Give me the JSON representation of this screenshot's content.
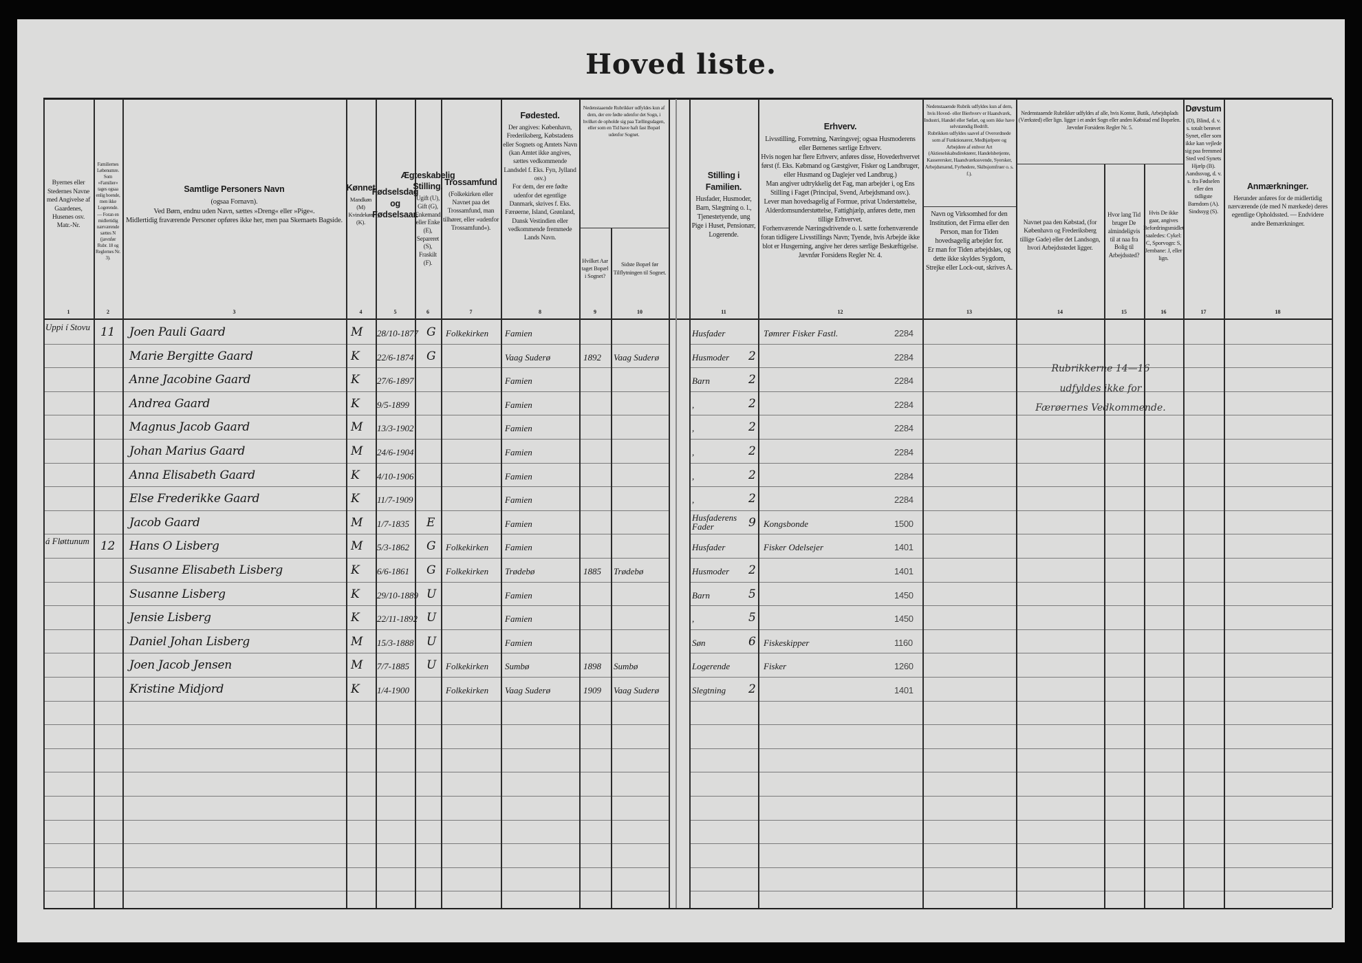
{
  "title": "Hoved    liste.",
  "header": {
    "columns": [
      {
        "num": "1",
        "title": "",
        "body": "Byernes eller Stedernes Navne med Angivelse af Gaardenes, Husenes osv. Matr.-Nr."
      },
      {
        "num": "2",
        "title": "",
        "body": "Familiernes Løbenumre. Som »Familier« tages ogsaa enlig boende, men ikke Logerende. — Foran en midlertidig nærværende sættes N (jævnfør Rubr. 18 og Reglernes Nr. 3)."
      },
      {
        "num": "3",
        "title": "Samtlige Personers Navn",
        "body": "(ogsaa Fornavn).\nVed Børn, endnu uden Navn, sættes »Dreng« eller »Pige«.\nMidlertidig fraværende Personer opføres ikke her, men paa Skemaets Bagside."
      },
      {
        "num": "4",
        "title": "Kønnet",
        "body": "Mandkøn (M) Kvindekøn (K)."
      },
      {
        "num": "5",
        "title": "Fødselsdag og Fødselsaar.",
        "body": ""
      },
      {
        "num": "6",
        "title": "Ægteskabelig Stilling.",
        "body": "Ugift (U), Gift (G), Enkemand eller Enke (E), Separeret (S), Fraskilt (F)."
      },
      {
        "num": "7",
        "title": "Trossamfund",
        "body": "(Folkekirken eller Navnet paa det Trossamfund, man tilhører, eller »udenfor Trossamfund«)."
      },
      {
        "num": "8",
        "title": "Fødested.",
        "body": "Der angives: København, Frederiksberg, Købstadens eller Sognets og Amtets Navn (kan Amtet ikke angives, sættes vedkommende Landsdel f. Eks. Fyn, Jylland osv.)\nFor dem, der ere fødte udenfor det egentlige Danmark, skrives f. Eks. Færøerne, Island, Grønland, Dansk Vestindien eller vedkommende fremmede Lands Navn."
      },
      {
        "num": "9",
        "title": "",
        "body": "Hvilket Aar taget Bopæl i Sognet?"
      },
      {
        "num": "10",
        "title": "",
        "body": "Sidste Bopæl før Tilflytningen til Sognet."
      },
      {
        "num": "11",
        "title": "Stilling i Familien.",
        "body": "Husfader, Husmoder, Barn, Slægtning o. l., Tjenestetyende, ung Pige i Huset, Pensionær, Logerende."
      },
      {
        "num": "12",
        "title": "Erhverv.",
        "body": "Livsstilling, Forretning, Næringsvej; ogsaa Husmoderens eller Børnenes særlige Erhverv.\nHvis nogen har flere Erhverv, anføres disse, Hovederhvervet først (f. Eks. Købmand og Gæstgiver, Fisker og Landbruger, eller Husmand og Daglejer ved Landbrug.)\nMan angiver udtrykkelig det Fag, man arbejder i, og Ens Stilling i Faget (Principal, Svend, Arbejdsmand osv.).\nLever man hovedsagelig af Formue, privat Understøttelse, Alderdomsunderstøttelse, Fattighjælp, anføres dette, men tillige Erhvervet.\nForhenværende Næringsdrivende o. l. sætte forhenværende foran tidligere Livsstillings Navn; Tyende, hvis Arbejde ikke blot er Husgerning, angive her deres særlige Beskæftigelse.\nJævnfør Forsidens Regler Nr. 4."
      },
      {
        "num": "13",
        "title": "",
        "body": "Navn og Virksomhed for den Institution, det Firma eller den Person, man for Tiden hovedsagelig arbejder for.\nEr man for Tiden arbejdsløs, og dette ikke skyldes Sygdom, Strejke eller Lock-out, skrives A."
      },
      {
        "num": "14",
        "title": "",
        "body": "Navnet paa den Købstad, (for København og Frederiksberg tillige Gade) eller det Landsogn, hvori Arbejdsstedet ligger."
      },
      {
        "num": "15",
        "title": "",
        "body": "Hvor lang Tid bruger De almindeligvis til at naa fra Bolig til Arbejdssted?"
      },
      {
        "num": "16",
        "title": "",
        "body": "Hvis De ikke gaar, angives Befordringsmidlet saaledes: Cykel: C, Sporvogn: S, Jernbane: J, eller lign."
      },
      {
        "num": "17",
        "title": "Døvstum",
        "body": "(D), Blind, d. v. s. totalt berøvet Synet, eller som ikke kan vejlede sig paa fremmed Sted ved Synets Hjælp (B). Aandssvag, d. v. s. fra Fødselen eller den tidligste Barndom (A). Sindssyg (S)."
      },
      {
        "num": "18",
        "title": "Anmærkninger.",
        "body": "Herunder anføres for de midlertidig nærværende (de med N mærkede) deres egentlige Opholdssted. — Endvidere andre Bemærkninger."
      }
    ],
    "group_9_10": "Nedenstaaende Rubrikker udfyldes kun af dem, der ere fødte udenfor det Sogn, i hvilket de opholde sig paa Tællingsdagen, eller som en Tid have haft fast Bopæl udenfor Sognet.",
    "group_13": "Nedenstaaende Rubrik udfyldes kun af dem, hvis Hoved- eller Bierhverv er Haandværk, Industri, Handel eller Søfart, og som ikke have selvstændig Bedrift.\nRubrikken udfyldes saavel af Overordnede som af Funktionærer, Medhjælpere og Arbejdere af enhver Art (Aktieselskabsdirektører, Handelsbetjente, Kasserersker, Haandværkssvende, Syersker, Arbejdsmænd, Fyrbødere, Skibsjomfruer o. s. f.).",
    "group_14_16": "Nedenstaaende Rubrikker udfyldes af alle, hvis Kontor, Butik, Arbejdsplads (Værksted) eller lign. ligger i et andet Sogn eller anden Købstad end Bopælen.\nJævnfør Forsidens Regler Nr. 5."
  },
  "rows": [
    {
      "place": "Uppi í Stovu",
      "fam": "11",
      "name": "Joen Pauli Gaard",
      "sex": "M",
      "birth": "28/10-1877",
      "marital": "G",
      "religion": "Folkekirken",
      "birthplace": "Famien",
      "year": "",
      "last": "",
      "position": "Husfader",
      "pos_code": "",
      "occupation": "Tømrer Fisker Fastl.",
      "code": "2284"
    },
    {
      "place": "",
      "fam": "",
      "name": "Marie Bergitte Gaard",
      "sex": "K",
      "birth": "22/6-1874",
      "marital": "G",
      "religion": "",
      "birthplace": "Vaag Suderø",
      "year": "1892",
      "last": "Vaag Suderø",
      "position": "Husmoder",
      "pos_code": "2",
      "occupation": "",
      "code": "2284"
    },
    {
      "place": "",
      "fam": "",
      "name": "Anne Jacobine Gaard",
      "sex": "K",
      "birth": "27/6-1897",
      "marital": "",
      "religion": "",
      "birthplace": "Famien",
      "year": "",
      "last": "",
      "position": "Barn",
      "pos_code": "2",
      "occupation": "",
      "code": "2284"
    },
    {
      "place": "",
      "fam": "",
      "name": "Andrea Gaard",
      "sex": "K",
      "birth": "9/5-1899",
      "marital": "",
      "religion": "",
      "birthplace": "Famien",
      "year": "",
      "last": "",
      "position": ",",
      "pos_code": "2",
      "occupation": "",
      "code": "2284"
    },
    {
      "place": "",
      "fam": "",
      "name": "Magnus Jacob Gaard",
      "sex": "M",
      "birth": "13/3-1902",
      "marital": "",
      "religion": "",
      "birthplace": "Famien",
      "year": "",
      "last": "",
      "position": ",",
      "pos_code": "2",
      "occupation": "",
      "code": "2284"
    },
    {
      "place": "",
      "fam": "",
      "name": "Johan Marius Gaard",
      "sex": "M",
      "birth": "24/6-1904",
      "marital": "",
      "religion": "",
      "birthplace": "Famien",
      "year": "",
      "last": "",
      "position": ",",
      "pos_code": "2",
      "occupation": "",
      "code": "2284"
    },
    {
      "place": "",
      "fam": "",
      "name": "Anna Elisabeth Gaard",
      "sex": "K",
      "birth": "4/10-1906",
      "marital": "",
      "religion": "",
      "birthplace": "Famien",
      "year": "",
      "last": "",
      "position": ",",
      "pos_code": "2",
      "occupation": "",
      "code": "2284"
    },
    {
      "place": "",
      "fam": "",
      "name": "Else Frederikke Gaard",
      "sex": "K",
      "birth": "11/7-1909",
      "marital": "",
      "religion": "",
      "birthplace": "Famien",
      "year": "",
      "last": "",
      "position": ",",
      "pos_code": "2",
      "occupation": "",
      "code": "2284"
    },
    {
      "place": "",
      "fam": "",
      "name": "Jacob Gaard",
      "sex": "M",
      "birth": "1/7-1835",
      "marital": "E",
      "religion": "",
      "birthplace": "Famien",
      "year": "",
      "last": "",
      "position": "Husfaderens Fader",
      "pos_code": "9",
      "occupation": "Kongsbonde",
      "code": "1500"
    },
    {
      "place": "á Fløttunum",
      "fam": "12",
      "name": "Hans O Lisberg",
      "sex": "M",
      "birth": "5/3-1862",
      "marital": "G",
      "religion": "Folkekirken",
      "birthplace": "Famien",
      "year": "",
      "last": "",
      "position": "Husfader",
      "pos_code": "",
      "occupation": "Fisker Odelsejer",
      "code": "1401"
    },
    {
      "place": "",
      "fam": "",
      "name": "Susanne Elisabeth Lisberg",
      "sex": "K",
      "birth": "6/6-1861",
      "marital": "G",
      "religion": "Folkekirken",
      "birthplace": "Trødebø",
      "year": "1885",
      "last": "Trødebø",
      "position": "Husmoder",
      "pos_code": "2",
      "occupation": "",
      "code": "1401"
    },
    {
      "place": "",
      "fam": "",
      "name": "Susanne Lisberg",
      "sex": "K",
      "birth": "29/10-1889",
      "marital": "U",
      "religion": "",
      "birthplace": "Famien",
      "year": "",
      "last": "",
      "position": "Barn",
      "pos_code": "5",
      "occupation": "",
      "code": "1450"
    },
    {
      "place": "",
      "fam": "",
      "name": "Jensie Lisberg",
      "sex": "K",
      "birth": "22/11-1892",
      "marital": "U",
      "religion": "",
      "birthplace": "Famien",
      "year": "",
      "last": "",
      "position": ",",
      "pos_code": "5",
      "occupation": "",
      "code": "1450"
    },
    {
      "place": "",
      "fam": "",
      "name": "Daniel Johan Lisberg",
      "sex": "M",
      "birth": "15/3-1888",
      "marital": "U",
      "religion": "",
      "birthplace": "Famien",
      "year": "",
      "last": "",
      "position": "Søn",
      "pos_code": "6",
      "occupation": "Fiskeskipper",
      "code": "1160"
    },
    {
      "place": "",
      "fam": "",
      "name": "Joen Jacob Jensen",
      "sex": "M",
      "birth": "7/7-1885",
      "marital": "U",
      "religion": "Folkekirken",
      "birthplace": "Sumbø",
      "year": "1898",
      "last": "Sumbø",
      "position": "Logerende",
      "pos_code": "",
      "occupation": "Fisker",
      "code": "1260"
    },
    {
      "place": "",
      "fam": "",
      "name": "Kristine Midjord",
      "sex": "K",
      "birth": "1/4-1900",
      "marital": "",
      "religion": "Folkekirken",
      "birthplace": "Vaag Suderø",
      "year": "1909",
      "last": "Vaag Suderø",
      "position": "Slegtning",
      "pos_code": "2",
      "occupation": "",
      "code": "1401"
    }
  ],
  "note": {
    "line1": "Rubrikkerne 14—16",
    "line2": "udfyldes ikke for",
    "line3": "Færøernes Vedkommende."
  }
}
